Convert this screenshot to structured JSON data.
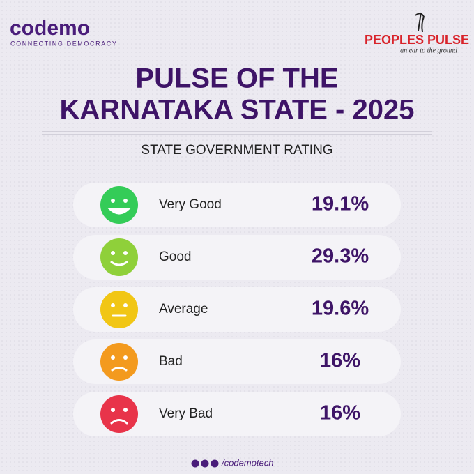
{
  "header": {
    "brand": "codemo",
    "brand_tagline": "CONNECTING DEMOCRACY",
    "partner": "PEOPLES PULSE",
    "partner_tagline": "an ear to the ground"
  },
  "title": [
    "PULSE OF THE",
    "KARNATAKA STATE - 2025"
  ],
  "subtitle": "STATE GOVERNMENT RATING",
  "rows": [
    {
      "label": "Very Good",
      "value": "19.1%",
      "color": "#34cc58"
    },
    {
      "label": "Good",
      "value": "29.3%",
      "color": "#8fd03a"
    },
    {
      "label": "Average",
      "value": "19.6%",
      "color": "#f1c615"
    },
    {
      "label": "Bad",
      "value": "16%",
      "color": "#f39a1e"
    },
    {
      "label": "Very Bad",
      "value": "16%",
      "color": "#e8344a"
    }
  ],
  "footer": "/codemotech"
}
